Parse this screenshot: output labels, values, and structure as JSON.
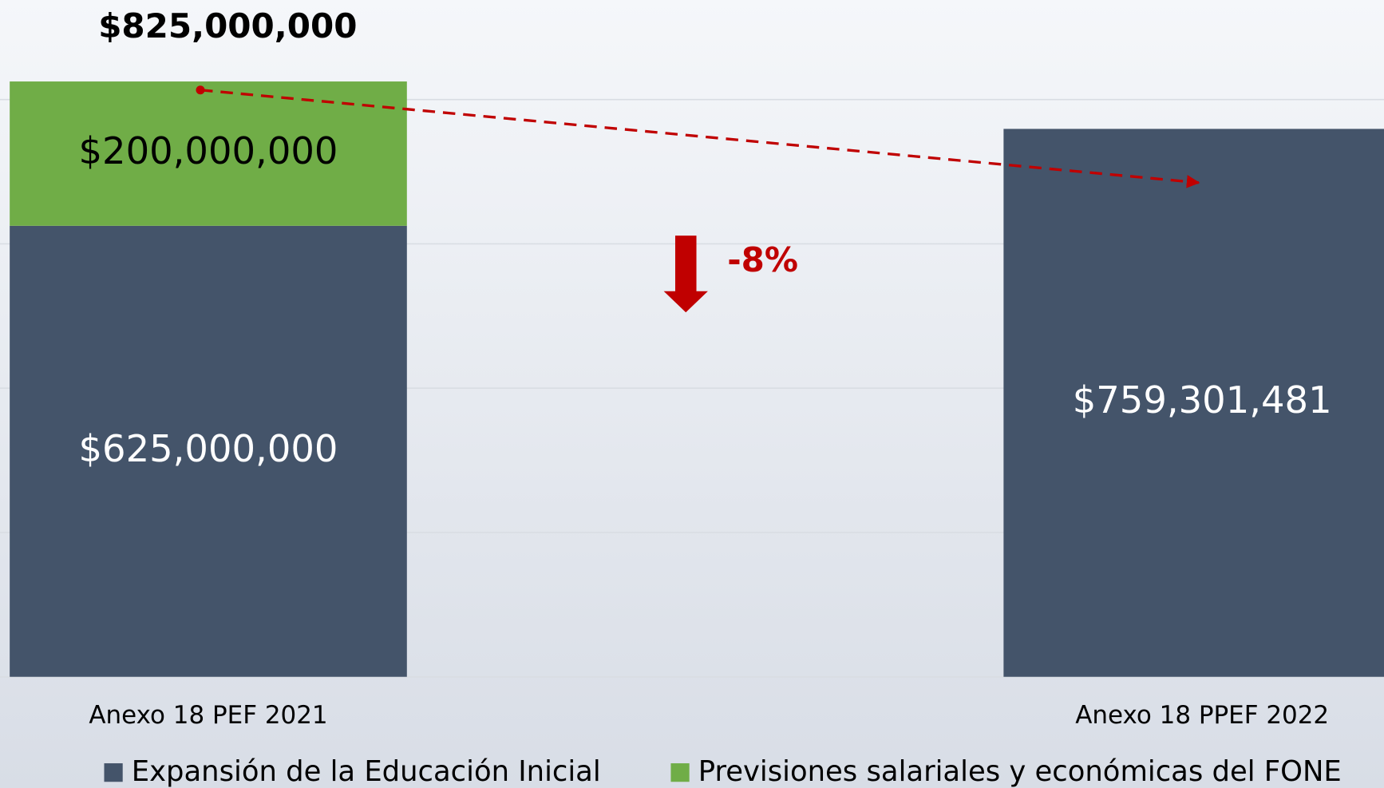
{
  "chart_data": {
    "type": "stacked_bar",
    "categories": [
      "Anexo 18 PEF 2021",
      "Anexo 18 PPEF 2022"
    ],
    "series": [
      {
        "name": "Expansión de la Educación Inicial",
        "color": "#44546a",
        "values": [
          625000000,
          759301481
        ],
        "value_labels": [
          "$625,000,000",
          "$759,301,481"
        ]
      },
      {
        "name": "Previsiones salariales y económicas del FONE",
        "color": "#70ad47",
        "values": [
          200000000,
          null
        ],
        "value_labels": [
          "$200,000,000",
          null
        ]
      }
    ],
    "annotations": [
      "$825,000,000",
      "-8%"
    ],
    "ylim": [
      0,
      900000000
    ],
    "yticks": [
      0,
      200000000,
      400000000,
      600000000,
      800000000
    ],
    "grid": true,
    "legend": "bottom"
  }
}
